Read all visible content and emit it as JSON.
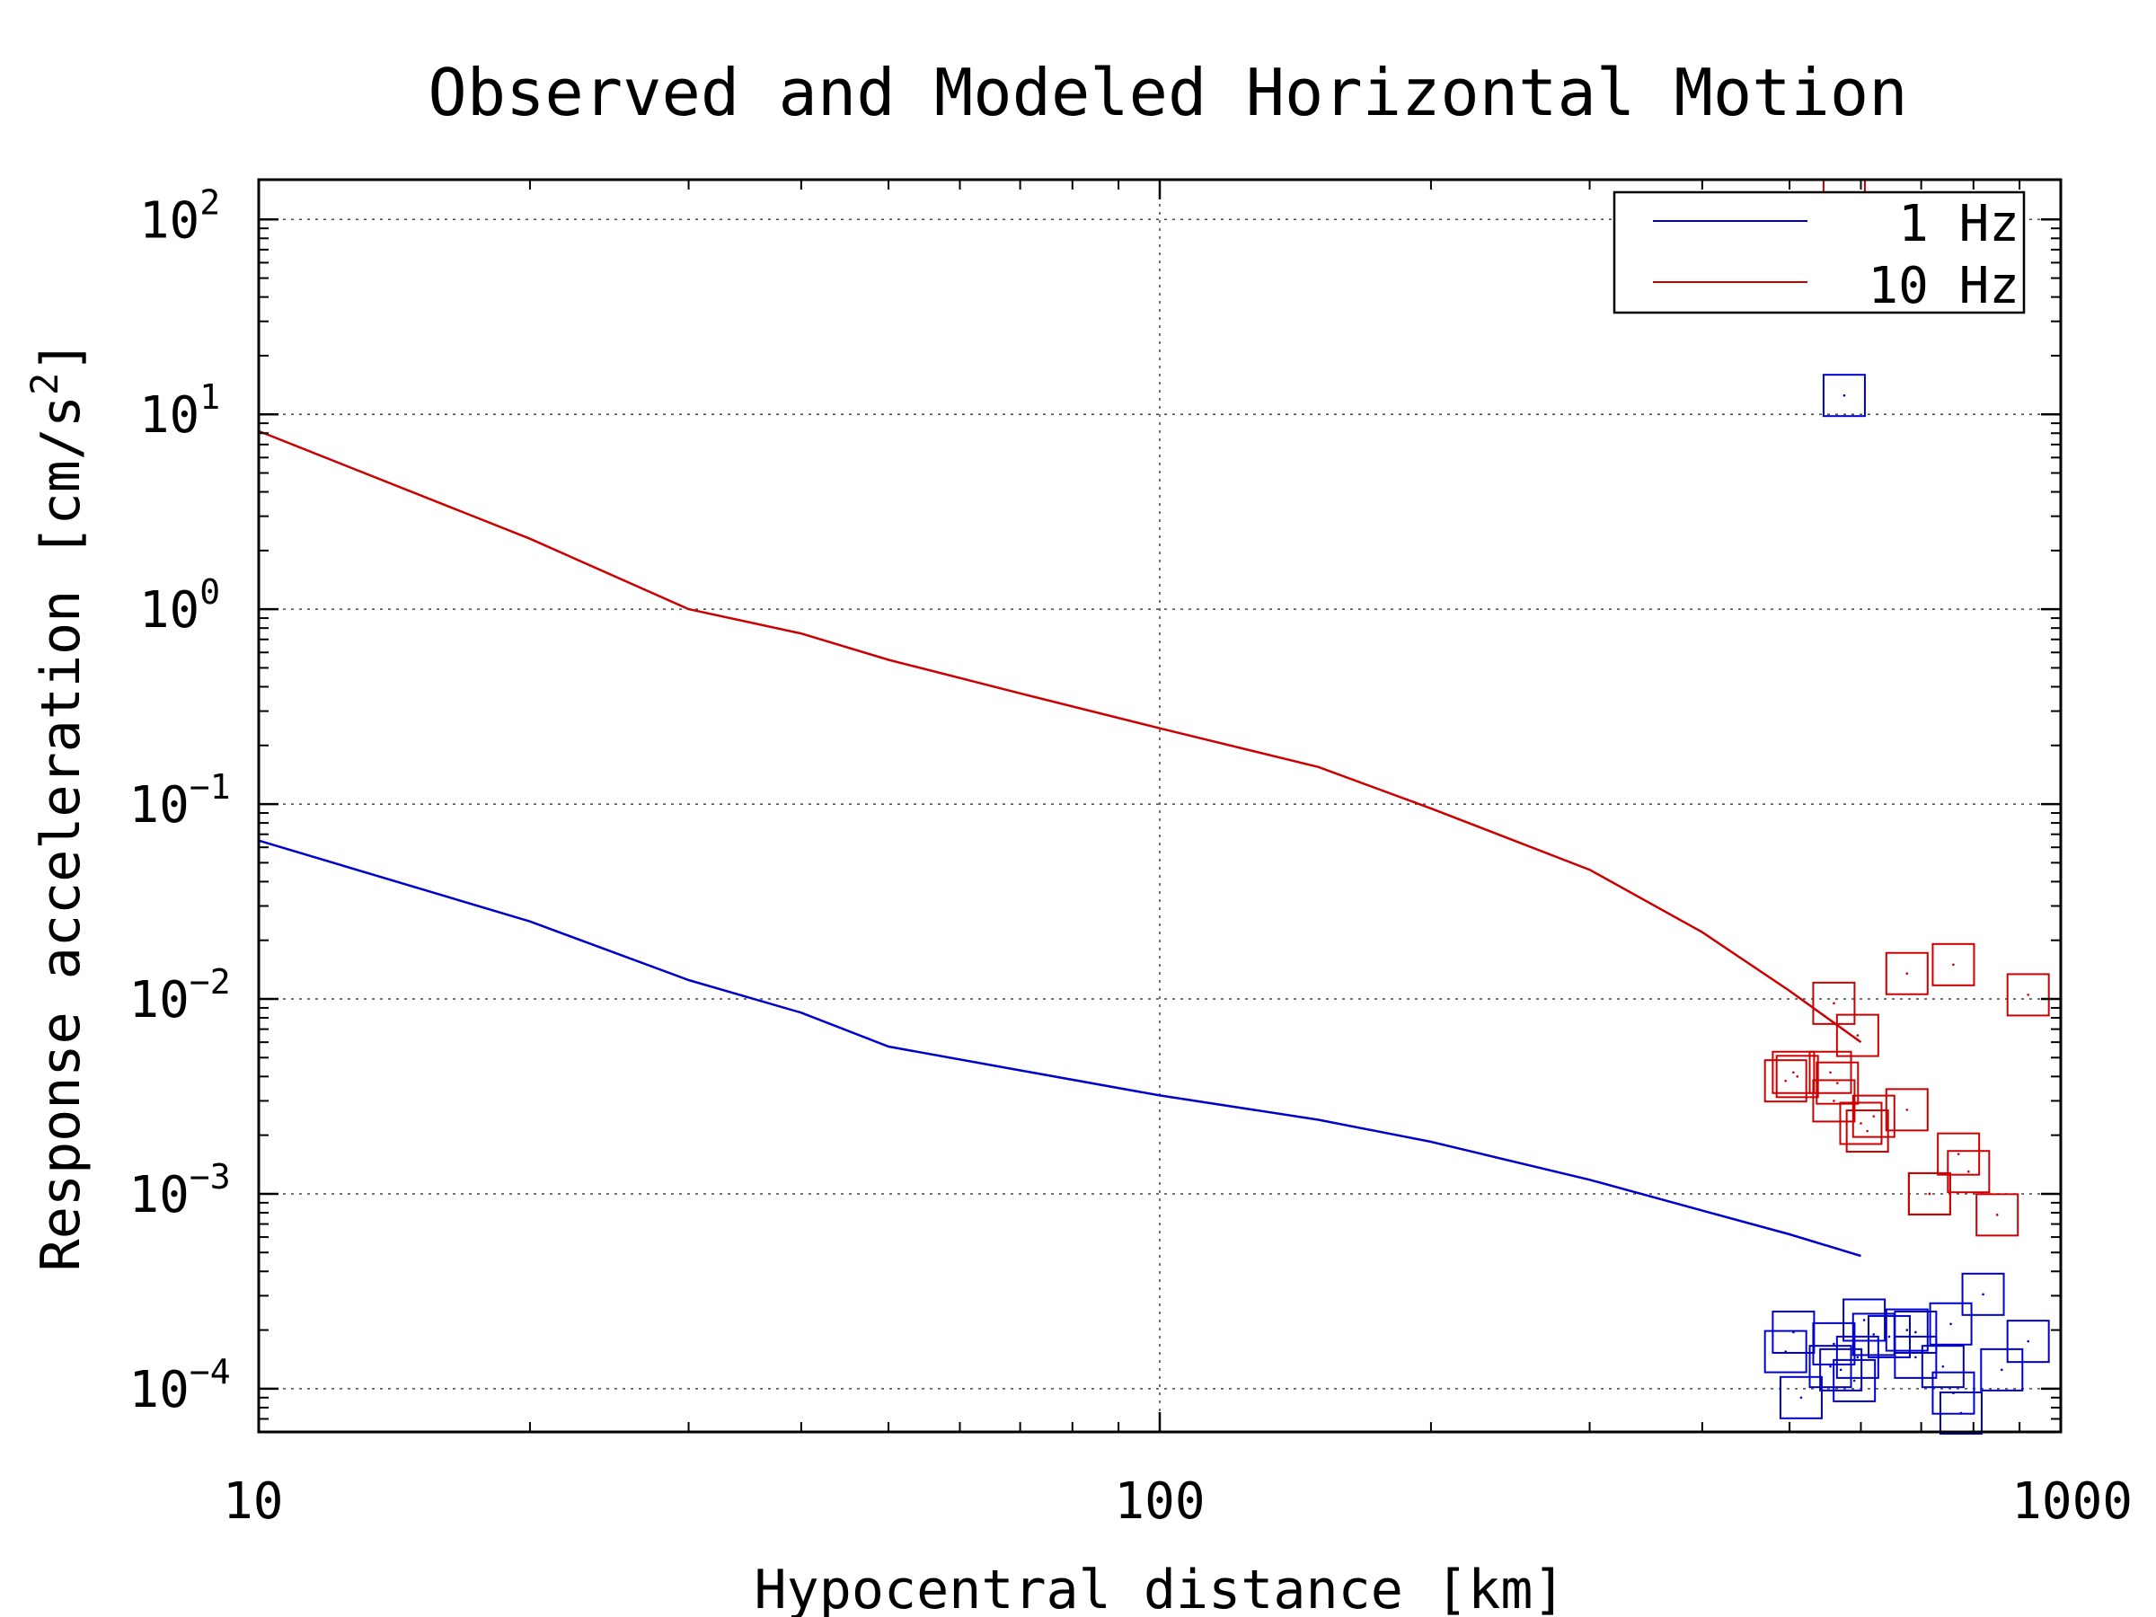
{
  "chart_data": {
    "type": "line",
    "title": "Observed and Modeled Horizontal Motion",
    "xlabel": "Hypocentral distance [km]",
    "ylabel": {
      "text": "Response acceleration [cm/s",
      "sup": "2",
      "close": "]"
    },
    "xscale": "log",
    "yscale": "log",
    "xlim": [
      10,
      1000
    ],
    "ylim": [
      6e-05,
      160
    ],
    "grid": true,
    "legend_position": "top-right",
    "x_ticks": [
      {
        "value": 10,
        "label": "10"
      },
      {
        "value": 100,
        "label": "100"
      },
      {
        "value": 1000,
        "label": "1000"
      }
    ],
    "y_ticks": [
      {
        "value": 0.0001,
        "base": "10",
        "exp": "−4"
      },
      {
        "value": 0.001,
        "base": "10",
        "exp": "−3"
      },
      {
        "value": 0.01,
        "base": "10",
        "exp": "−2"
      },
      {
        "value": 0.1,
        "base": "10",
        "exp": "−1"
      },
      {
        "value": 1,
        "base": "10",
        "exp": "0"
      },
      {
        "value": 10,
        "base": "10",
        "exp": "1"
      },
      {
        "value": 100,
        "base": "10",
        "exp": "2"
      }
    ],
    "series": [
      {
        "name": "1 Hz",
        "color": "#0000cc",
        "x": [
          10,
          20,
          30,
          40,
          50,
          70,
          100,
          150,
          200,
          300,
          400,
          500,
          600
        ],
        "y": [
          0.065,
          0.025,
          0.0125,
          0.0085,
          0.0057,
          0.0043,
          0.0032,
          0.0024,
          0.00185,
          0.00118,
          0.00082,
          0.00062,
          0.00048
        ]
      },
      {
        "name": "10 Hz",
        "color": "#cc0000",
        "x": [
          10,
          20,
          30,
          40,
          50,
          70,
          100,
          150,
          200,
          300,
          400,
          500,
          600
        ],
        "y": [
          8.2,
          2.3,
          1.0,
          0.75,
          0.55,
          0.37,
          0.245,
          0.155,
          0.095,
          0.046,
          0.022,
          0.011,
          0.006
        ]
      }
    ],
    "observed": [
      {
        "series": "1 Hz",
        "color": "#0000cc",
        "x": [
          575,
          495,
          505,
          515,
          560,
          555,
          570,
          590,
          605,
          620,
          645,
          675,
          690,
          690,
          740,
          760,
          775,
          755,
          820,
          860,
          920,
          595
        ],
        "y": [
          12.5,
          0.000155,
          0.000195,
          9e-05,
          0.00017,
          0.00013,
          0.000125,
          0.00011,
          0.000225,
          0.00019,
          0.000185,
          0.0002,
          0.000195,
          0.000145,
          0.00013,
          9.5e-05,
          7.5e-05,
          0.000215,
          0.000305,
          0.000125,
          0.000175,
          0.000145
        ]
      },
      {
        "series": "10 Hz",
        "color": "#cc0000",
        "x": [
          575,
          495,
          505,
          510,
          555,
          565,
          560,
          595,
          600,
          610,
          620,
          675,
          675,
          715,
          715,
          760,
          770,
          790,
          850,
          920,
          560
        ],
        "y": [
          125,
          0.0038,
          0.0042,
          0.004,
          0.0042,
          0.0037,
          0.0095,
          0.0065,
          0.0023,
          0.0021,
          0.0025,
          0.0135,
          0.0027,
          0.001,
          0.001,
          0.015,
          0.0016,
          0.0013,
          0.00078,
          0.0105,
          0.003
        ]
      }
    ]
  }
}
